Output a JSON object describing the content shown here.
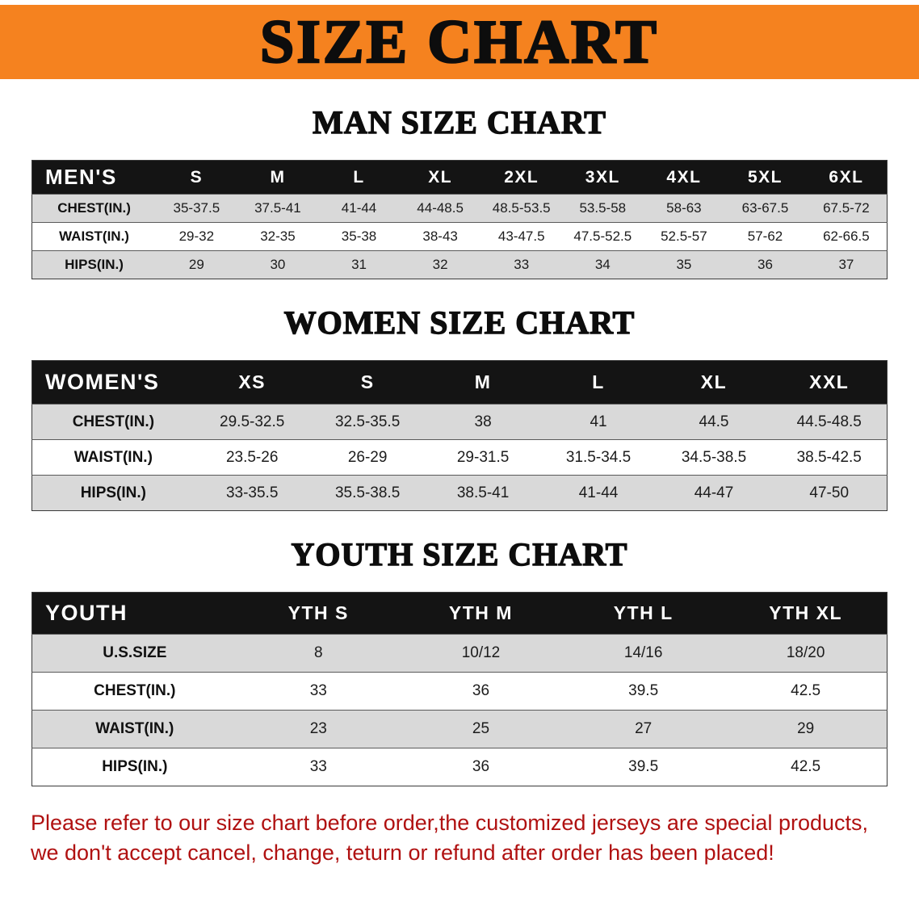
{
  "banner": {
    "title": "SIZE CHART"
  },
  "sections": [
    {
      "id": "men",
      "heading": "MAN SIZE CHART",
      "table": {
        "header": [
          "MEN'S",
          "S",
          "M",
          "L",
          "XL",
          "2XL",
          "3XL",
          "4XL",
          "5XL",
          "6XL"
        ],
        "rows": [
          [
            "CHEST(IN.)",
            "35-37.5",
            "37.5-41",
            "41-44",
            "44-48.5",
            "48.5-53.5",
            "53.5-58",
            "58-63",
            "63-67.5",
            "67.5-72"
          ],
          [
            "WAIST(IN.)",
            "29-32",
            "32-35",
            "35-38",
            "38-43",
            "43-47.5",
            "47.5-52.5",
            "52.5-57",
            "57-62",
            "62-66.5"
          ],
          [
            "HIPS(IN.)",
            "29",
            "30",
            "31",
            "32",
            "33",
            "34",
            "35",
            "36",
            "37"
          ]
        ]
      }
    },
    {
      "id": "women",
      "heading": "WOMEN SIZE CHART",
      "table": {
        "header": [
          "WOMEN'S",
          "XS",
          "S",
          "M",
          "L",
          "XL",
          "XXL"
        ],
        "rows": [
          [
            "CHEST(IN.)",
            "29.5-32.5",
            "32.5-35.5",
            "38",
            "41",
            "44.5",
            "44.5-48.5"
          ],
          [
            "WAIST(IN.)",
            "23.5-26",
            "26-29",
            "29-31.5",
            "31.5-34.5",
            "34.5-38.5",
            "38.5-42.5"
          ],
          [
            "HIPS(IN.)",
            "33-35.5",
            "35.5-38.5",
            "38.5-41",
            "41-44",
            "44-47",
            "47-50"
          ]
        ]
      }
    },
    {
      "id": "youth",
      "heading": "YOUTH SIZE CHART",
      "table": {
        "header": [
          "YOUTH",
          "YTH S",
          "YTH M",
          "YTH L",
          "YTH XL"
        ],
        "rows": [
          [
            "U.S.SIZE",
            "8",
            "10/12",
            "14/16",
            "18/20"
          ],
          [
            "CHEST(IN.)",
            "33",
            "36",
            "39.5",
            "42.5"
          ],
          [
            "WAIST(IN.)",
            "23",
            "25",
            "27",
            "29"
          ],
          [
            "HIPS(IN.)",
            "33",
            "36",
            "39.5",
            "42.5"
          ]
        ]
      }
    }
  ],
  "disclaimer": {
    "line1": "Please refer to our size chart before order,the customized jerseys are special products,",
    "line2": "we don't accept cancel, change, teturn or refund after order has been placed!"
  },
  "colors": {
    "banner-orange": "#f5821f",
    "header-black": "#141414",
    "row-gray": "#d9d9d9",
    "disclaimer-red": "#b01111"
  }
}
